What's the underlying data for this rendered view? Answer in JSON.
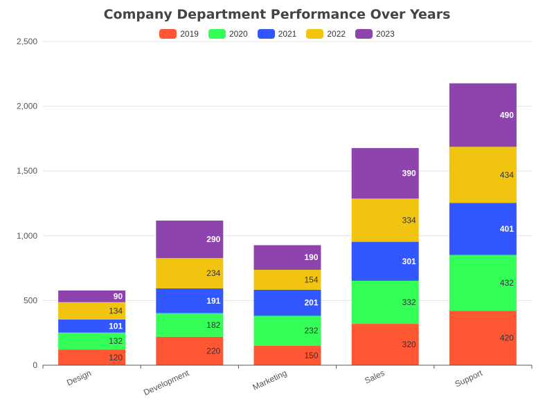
{
  "chart_data": {
    "type": "bar",
    "stacked": true,
    "title": "Company Department Performance Over Years",
    "xlabel": "",
    "ylabel": "",
    "ylim": [
      0,
      2500
    ],
    "yticks": [
      0,
      500,
      1000,
      1500,
      2000,
      2500
    ],
    "ytick_labels": [
      "0",
      "500",
      "1,000",
      "1,500",
      "2,000",
      "2,500"
    ],
    "grid": true,
    "legend_position": "top-center",
    "categories": [
      "Design",
      "Development",
      "Marketing",
      "Sales",
      "Support"
    ],
    "series": [
      {
        "name": "2019",
        "color": "#ff5733",
        "label_color": "#333333",
        "values": [
          120,
          220,
          150,
          320,
          420
        ]
      },
      {
        "name": "2020",
        "color": "#33ff57",
        "label_color": "#333333",
        "values": [
          132,
          182,
          232,
          332,
          432
        ]
      },
      {
        "name": "2021",
        "color": "#3357ff",
        "label_color": "#ffffff",
        "values": [
          101,
          191,
          201,
          301,
          401
        ]
      },
      {
        "name": "2022",
        "color": "#f1c40f",
        "label_color": "#333333",
        "values": [
          134,
          234,
          154,
          334,
          434
        ]
      },
      {
        "name": "2023",
        "color": "#8e44ad",
        "label_color": "#ffffff",
        "values": [
          90,
          290,
          190,
          390,
          490
        ]
      }
    ]
  }
}
